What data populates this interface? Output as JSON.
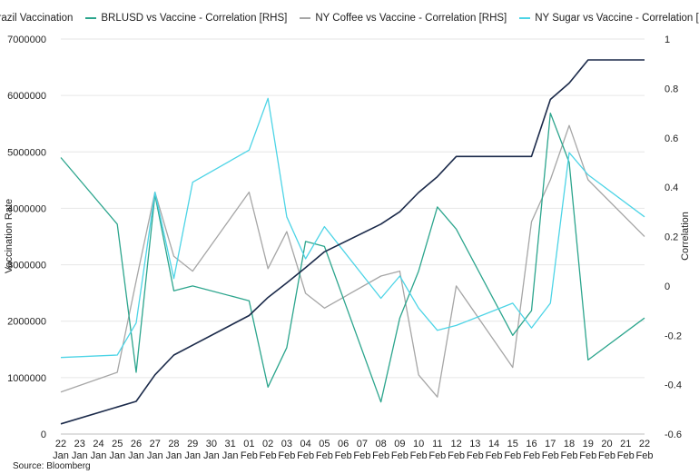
{
  "source_note": "Source: Bloomberg",
  "chart_data": {
    "type": "line",
    "title": "",
    "ylabel": "Vaccination Rate",
    "y2label": "Correlation",
    "ylim": [
      0,
      7000000
    ],
    "y2lim": [
      -0.6,
      1
    ],
    "yticks": [
      "0",
      "1000000",
      "2000000",
      "3000000",
      "4000000",
      "5000000",
      "6000000",
      "7000000"
    ],
    "y2ticks": [
      "-0.6",
      "-0.4",
      "-0.2",
      "0",
      "0.2",
      "0.4",
      "0.6",
      "0.8",
      "1"
    ],
    "legend_position": "top",
    "grid": true,
    "categories": [
      {
        "day": "22",
        "month": "Jan"
      },
      {
        "day": "23",
        "month": "Jan"
      },
      {
        "day": "24",
        "month": "Jan"
      },
      {
        "day": "25",
        "month": "Jan"
      },
      {
        "day": "26",
        "month": "Jan"
      },
      {
        "day": "27",
        "month": "Jan"
      },
      {
        "day": "28",
        "month": "Jan"
      },
      {
        "day": "29",
        "month": "Jan"
      },
      {
        "day": "30",
        "month": "Jan"
      },
      {
        "day": "31",
        "month": "Jan"
      },
      {
        "day": "01",
        "month": "Feb"
      },
      {
        "day": "02",
        "month": "Feb"
      },
      {
        "day": "03",
        "month": "Feb"
      },
      {
        "day": "04",
        "month": "Feb"
      },
      {
        "day": "05",
        "month": "Feb"
      },
      {
        "day": "06",
        "month": "Feb"
      },
      {
        "day": "07",
        "month": "Feb"
      },
      {
        "day": "08",
        "month": "Feb"
      },
      {
        "day": "09",
        "month": "Feb"
      },
      {
        "day": "10",
        "month": "Feb"
      },
      {
        "day": "11",
        "month": "Feb"
      },
      {
        "day": "12",
        "month": "Feb"
      },
      {
        "day": "13",
        "month": "Feb"
      },
      {
        "day": "14",
        "month": "Feb"
      },
      {
        "day": "15",
        "month": "Feb"
      },
      {
        "day": "16",
        "month": "Feb"
      },
      {
        "day": "17",
        "month": "Feb"
      },
      {
        "day": "18",
        "month": "Feb"
      },
      {
        "day": "19",
        "month": "Feb"
      },
      {
        "day": "20",
        "month": "Feb"
      },
      {
        "day": "21",
        "month": "Feb"
      },
      {
        "day": "22",
        "month": "Feb"
      }
    ],
    "series": [
      {
        "name": "Brazil Vaccination",
        "axis": "left",
        "color": "#1b2a4a",
        "points": [
          [
            0,
            180000
          ],
          [
            4,
            580000
          ],
          [
            5,
            1050000
          ],
          [
            6,
            1400000
          ],
          [
            10,
            2100000
          ],
          [
            11,
            2420000
          ],
          [
            12,
            2680000
          ],
          [
            13,
            2950000
          ],
          [
            14,
            3230000
          ],
          [
            17,
            3720000
          ],
          [
            18,
            3940000
          ],
          [
            19,
            4280000
          ],
          [
            20,
            4560000
          ],
          [
            21,
            4920000
          ],
          [
            25,
            4920000
          ],
          [
            26,
            5930000
          ],
          [
            27,
            6220000
          ],
          [
            28,
            6630000
          ],
          [
            31,
            6630000
          ]
        ]
      },
      {
        "name": "BRLUSD vs Vaccine - Correlation [RHS]",
        "axis": "right",
        "color": "#2ca58d",
        "points": [
          [
            0,
            0.52
          ],
          [
            3,
            0.25
          ],
          [
            4,
            -0.35
          ],
          [
            5,
            0.37
          ],
          [
            6,
            -0.02
          ],
          [
            7,
            0.0
          ],
          [
            10,
            -0.06
          ],
          [
            11,
            -0.41
          ],
          [
            12,
            -0.25
          ],
          [
            13,
            0.18
          ],
          [
            14,
            0.16
          ],
          [
            17,
            -0.47
          ],
          [
            18,
            -0.13
          ],
          [
            19,
            0.06
          ],
          [
            20,
            0.32
          ],
          [
            21,
            0.23
          ],
          [
            24,
            -0.2
          ],
          [
            25,
            -0.1
          ],
          [
            26,
            0.7
          ],
          [
            27,
            0.5
          ],
          [
            28,
            -0.3
          ],
          [
            31,
            -0.13
          ]
        ]
      },
      {
        "name": "NY Coffee vs Vaccine - Correlation [RHS]",
        "axis": "right",
        "color": "#a6a6a6",
        "points": [
          [
            0,
            -0.43
          ],
          [
            3,
            -0.35
          ],
          [
            4,
            0.02
          ],
          [
            5,
            0.38
          ],
          [
            6,
            0.12
          ],
          [
            7,
            0.06
          ],
          [
            10,
            0.38
          ],
          [
            11,
            0.07
          ],
          [
            12,
            0.22
          ],
          [
            13,
            -0.03
          ],
          [
            14,
            -0.09
          ],
          [
            17,
            0.04
          ],
          [
            18,
            0.06
          ],
          [
            19,
            -0.36
          ],
          [
            20,
            -0.45
          ],
          [
            21,
            0.0
          ],
          [
            24,
            -0.33
          ],
          [
            25,
            0.26
          ],
          [
            26,
            0.43
          ],
          [
            27,
            0.65
          ],
          [
            28,
            0.43
          ],
          [
            31,
            0.2
          ]
        ]
      },
      {
        "name": "NY Sugar vs Vaccine - Correlation [RHS]",
        "axis": "right",
        "color": "#4dd4e6",
        "points": [
          [
            0,
            -0.29
          ],
          [
            3,
            -0.28
          ],
          [
            4,
            -0.15
          ],
          [
            5,
            0.38
          ],
          [
            6,
            0.03
          ],
          [
            7,
            0.42
          ],
          [
            10,
            0.55
          ],
          [
            11,
            0.76
          ],
          [
            12,
            0.28
          ],
          [
            13,
            0.11
          ],
          [
            14,
            0.24
          ],
          [
            17,
            -0.05
          ],
          [
            18,
            0.04
          ],
          [
            19,
            -0.09
          ],
          [
            20,
            -0.18
          ],
          [
            21,
            -0.16
          ],
          [
            24,
            -0.07
          ],
          [
            25,
            -0.17
          ],
          [
            26,
            -0.07
          ],
          [
            27,
            0.54
          ],
          [
            28,
            0.45
          ],
          [
            31,
            0.28
          ]
        ]
      }
    ]
  }
}
